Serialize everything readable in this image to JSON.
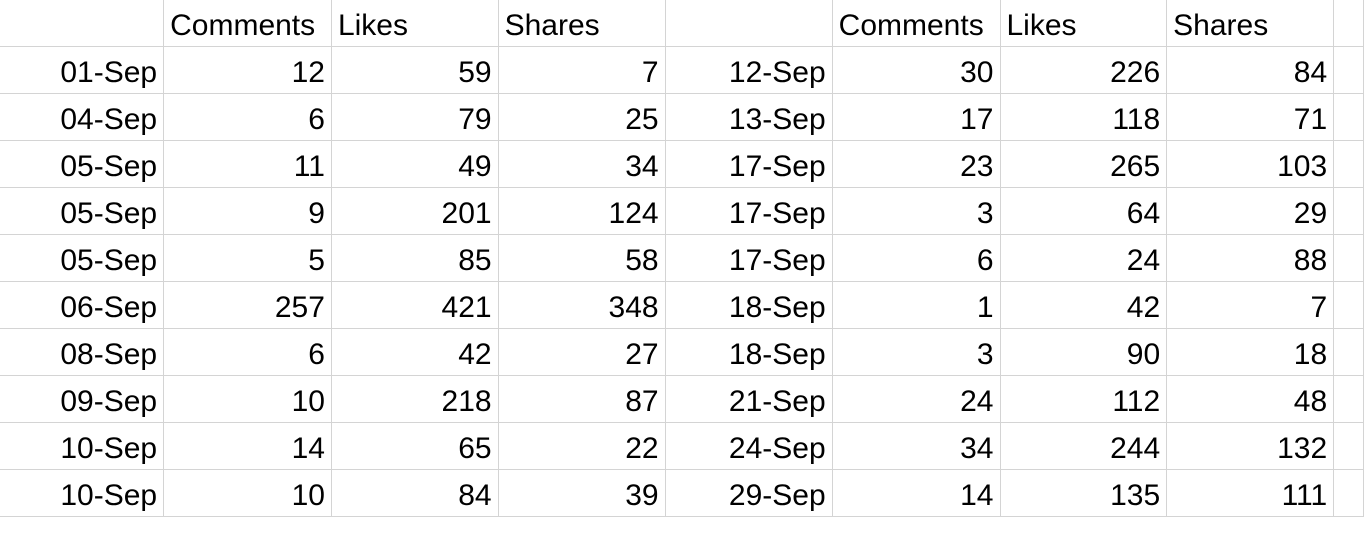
{
  "headers": [
    "",
    "Comments",
    "Likes",
    "Shares",
    "",
    "Comments",
    "Likes",
    "Shares"
  ],
  "rows": [
    [
      "01-Sep",
      "12",
      "59",
      "7",
      "12-Sep",
      "30",
      "226",
      "84"
    ],
    [
      "04-Sep",
      "6",
      "79",
      "25",
      "13-Sep",
      "17",
      "118",
      "71"
    ],
    [
      "05-Sep",
      "11",
      "49",
      "34",
      "17-Sep",
      "23",
      "265",
      "103"
    ],
    [
      "05-Sep",
      "9",
      "201",
      "124",
      "17-Sep",
      "3",
      "64",
      "29"
    ],
    [
      "05-Sep",
      "5",
      "85",
      "58",
      "17-Sep",
      "6",
      "24",
      "88"
    ],
    [
      "06-Sep",
      "257",
      "421",
      "348",
      "18-Sep",
      "1",
      "42",
      "7"
    ],
    [
      "08-Sep",
      "6",
      "42",
      "27",
      "18-Sep",
      "3",
      "90",
      "18"
    ],
    [
      "09-Sep",
      "10",
      "218",
      "87",
      "21-Sep",
      "24",
      "112",
      "48"
    ],
    [
      "10-Sep",
      "14",
      "65",
      "22",
      "24-Sep",
      "34",
      "244",
      "132"
    ],
    [
      "10-Sep",
      "10",
      "84",
      "39",
      "29-Sep",
      "14",
      "135",
      "111"
    ]
  ],
  "gridline_color": "#d4d4d4"
}
